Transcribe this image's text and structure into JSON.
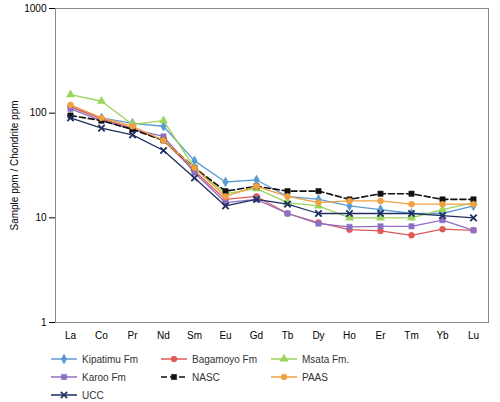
{
  "chart_data": {
    "type": "line",
    "y_label": "Sample ppm / Chondrite ppm",
    "categories": [
      "La",
      "Co",
      "Pr",
      "Nd",
      "Sm",
      "Eu",
      "Gd",
      "Tb",
      "Dy",
      "Ho",
      "Er",
      "Tm",
      "Yb",
      "Lu"
    ],
    "log": "y",
    "ylim": [
      1,
      1000
    ],
    "yticks": [
      1,
      10,
      100,
      1000
    ],
    "grid": false,
    "legend": "bottom",
    "series": [
      {
        "name": "Kipatimu Fm",
        "color": "#5b9bd5",
        "marker": "diamond",
        "line_style": "solid",
        "values": [
          115,
          90,
          80,
          75,
          35,
          22,
          23,
          16,
          15,
          13,
          12,
          11,
          11,
          13
        ]
      },
      {
        "name": "Bagamoyo Fm",
        "color": "#e05a5a",
        "marker": "circle",
        "line_style": "solid",
        "values": [
          115,
          88,
          72,
          55,
          28,
          15,
          16,
          11,
          9,
          7.7,
          7.5,
          6.8,
          7.8,
          7.6
        ]
      },
      {
        "name": "Msata Fm.",
        "color": "#9bd45a",
        "marker": "triangle",
        "line_style": "solid",
        "values": [
          150,
          130,
          78,
          85,
          30,
          17,
          19,
          14,
          13,
          10,
          10,
          10,
          12,
          14
        ]
      },
      {
        "name": "Karoo Fm",
        "color": "#8e6fc4",
        "marker": "square",
        "line_style": "solid",
        "values": [
          110,
          85,
          70,
          60,
          27,
          14,
          15,
          11,
          8.8,
          8.2,
          8.3,
          8.3,
          9.5,
          7.6
        ]
      },
      {
        "name": "NASC",
        "color": "#111111",
        "marker": "square",
        "line_style": "dashed",
        "values": [
          95,
          85,
          70,
          55,
          30,
          18,
          20,
          18,
          18,
          15,
          17,
          17,
          15,
          15
        ]
      },
      {
        "name": "PAAS",
        "color": "#f0a040",
        "marker": "circle",
        "line_style": "solid",
        "values": [
          120,
          90,
          75,
          55,
          30,
          16,
          20,
          16,
          14,
          14.5,
          14.5,
          13.5,
          13.5,
          13.5
        ]
      },
      {
        "name": "UCC",
        "color": "#1f2f5f",
        "marker": "times",
        "line_style": "solid",
        "values": [
          90,
          72,
          62,
          44,
          24,
          13,
          15,
          13.5,
          11,
          11,
          11,
          11,
          10.5,
          10
        ]
      }
    ]
  }
}
